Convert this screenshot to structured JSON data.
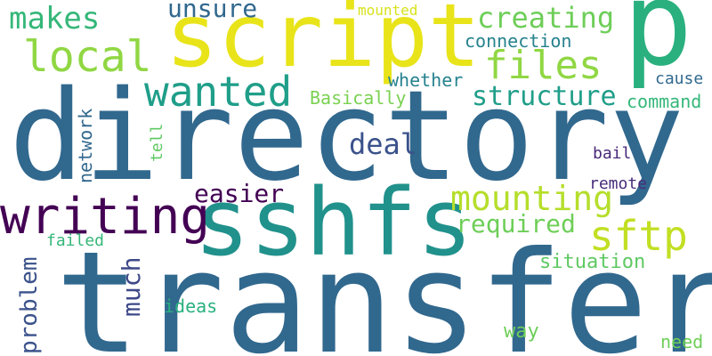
{
  "words": [
    {
      "text": "directory",
      "color": "#31688e"
    },
    {
      "text": "transfer",
      "color": "#31688e"
    },
    {
      "text": "sshfs",
      "color": "#21918c"
    },
    {
      "text": "script",
      "color": "#e8e419"
    },
    {
      "text": "p",
      "color": "#2ab07f"
    },
    {
      "text": "writing",
      "color": "#440154"
    },
    {
      "text": "wanted",
      "color": "#1f9e89"
    },
    {
      "text": "local",
      "color": "#90d743"
    },
    {
      "text": "files",
      "color": "#90d743"
    },
    {
      "text": "sftp",
      "color": "#c2df23"
    },
    {
      "text": "mounting",
      "color": "#b5de2b"
    },
    {
      "text": "creating",
      "color": "#6ece58"
    },
    {
      "text": "makes",
      "color": "#35b779"
    },
    {
      "text": "structure",
      "color": "#1f9e89"
    },
    {
      "text": "deal",
      "color": "#3b528b"
    },
    {
      "text": "unsure",
      "color": "#31688e"
    },
    {
      "text": "required",
      "color": "#6ece58"
    },
    {
      "text": "easier",
      "color": "#440154"
    },
    {
      "text": "much",
      "color": "#3e4989"
    },
    {
      "text": "problem",
      "color": "#3b528b"
    },
    {
      "text": "network",
      "color": "#31688e"
    },
    {
      "text": "situation",
      "color": "#5ec962"
    },
    {
      "text": "connection",
      "color": "#26828e"
    },
    {
      "text": "whether",
      "color": "#26828e"
    },
    {
      "text": "command",
      "color": "#35b779"
    },
    {
      "text": "Basically",
      "color": "#7ad151"
    },
    {
      "text": "mounted",
      "color": "#d8e219"
    },
    {
      "text": "cause",
      "color": "#31688e"
    },
    {
      "text": "bail",
      "color": "#482878"
    },
    {
      "text": "remote",
      "color": "#472d7b"
    },
    {
      "text": "tell",
      "color": "#5ec962"
    },
    {
      "text": "failed",
      "color": "#35b779"
    },
    {
      "text": "ideas",
      "color": "#2ab07f"
    },
    {
      "text": "way",
      "color": "#6ece58"
    },
    {
      "text": "need",
      "color": "#6ece58"
    }
  ]
}
